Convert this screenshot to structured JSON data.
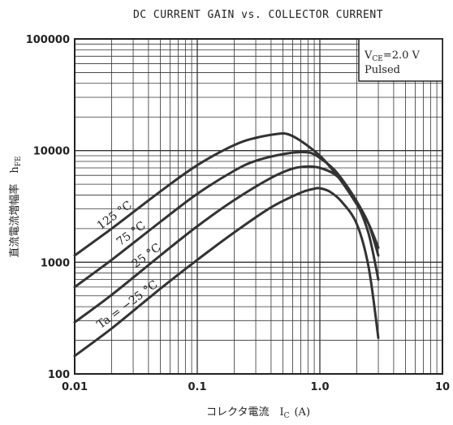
{
  "chart_data": {
    "type": "line",
    "title": "DC CURRENT GAIN vs. COLLECTOR CURRENT",
    "xlabel": "コレクタ電流　I",
    "xlabel_sub": "C",
    "xlabel_unit": "(A)",
    "ylabel": "直流電流増幅率　h",
    "ylabel_sub": "FE",
    "x_scale": "log",
    "y_scale": "log",
    "xlim": [
      0.01,
      10
    ],
    "ylim": [
      100,
      100000
    ],
    "x_ticks": [
      "0.01",
      "0.1",
      "1.0",
      "10"
    ],
    "y_ticks": [
      "100",
      "1000",
      "10000",
      "100000"
    ],
    "grid": true,
    "conditions": {
      "line1_main": "V",
      "line1_sub": "CE",
      "line1_rest": "=2.0 V",
      "line2": "Pulsed"
    },
    "series": [
      {
        "name": "125 °C",
        "label_text": "125",
        "label_unit": "°C",
        "x": [
          0.01,
          0.02,
          0.05,
          0.1,
          0.2,
          0.3,
          0.45,
          0.55,
          0.7,
          1.0,
          1.3,
          1.6,
          2.0,
          2.5,
          3.0
        ],
        "y": [
          1150,
          2000,
          4300,
          7400,
          11200,
          13000,
          14100,
          14000,
          12200,
          9000,
          6500,
          4800,
          3300,
          2200,
          1350
        ]
      },
      {
        "name": "75 °C",
        "label_text": "75",
        "label_unit": "°C",
        "x": [
          0.01,
          0.02,
          0.05,
          0.1,
          0.2,
          0.3,
          0.5,
          0.7,
          0.85,
          1.0,
          1.3,
          1.6,
          2.0,
          2.5,
          3.0
        ],
        "y": [
          600,
          1050,
          2300,
          4100,
          6600,
          8100,
          9300,
          9700,
          9500,
          8600,
          6800,
          5100,
          3500,
          2200,
          1150
        ]
      },
      {
        "name": "25 °C",
        "label_text": "25",
        "label_unit": "°C",
        "x": [
          0.01,
          0.02,
          0.05,
          0.1,
          0.2,
          0.4,
          0.6,
          0.8,
          1.0,
          1.3,
          1.6,
          2.0,
          2.5,
          3.0
        ],
        "y": [
          290,
          510,
          1150,
          2100,
          3600,
          5700,
          6900,
          7200,
          7000,
          6200,
          5000,
          3400,
          1800,
          700
        ]
      },
      {
        "name": "Ta = −25 °C",
        "label_text": "Ta = −25",
        "label_unit": "°C",
        "x": [
          0.01,
          0.02,
          0.05,
          0.1,
          0.2,
          0.4,
          0.7,
          0.9,
          1.0,
          1.2,
          1.5,
          2.0,
          2.5,
          3.0
        ],
        "y": [
          145,
          255,
          580,
          1050,
          1850,
          3100,
          4200,
          4550,
          4600,
          4300,
          3500,
          2200,
          900,
          210
        ]
      }
    ]
  }
}
